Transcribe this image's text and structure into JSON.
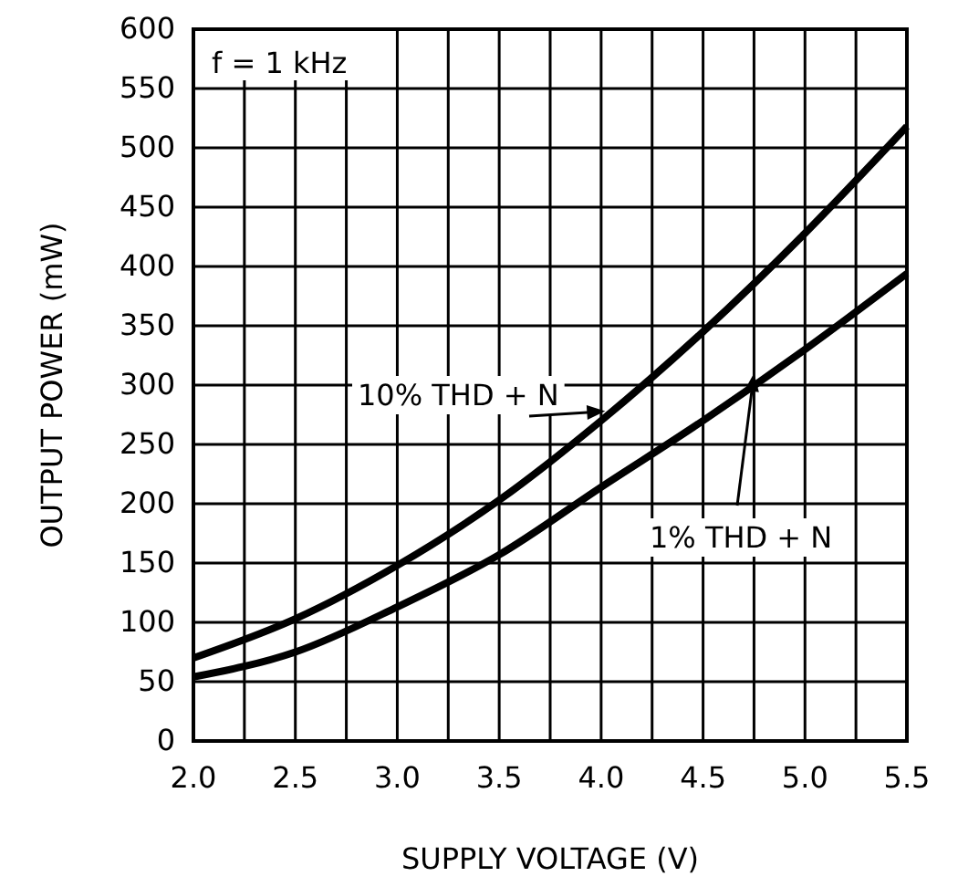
{
  "chart_data": {
    "type": "line",
    "xlabel": "SUPPLY VOLTAGE (V)",
    "ylabel": "OUTPUT POWER (mW)",
    "annotations": [
      "f = 1 kHz"
    ],
    "x": [
      2.0,
      2.5,
      3.0,
      3.5,
      4.0,
      4.5,
      5.0,
      5.5
    ],
    "series": [
      {
        "name": "10% THD + N",
        "color": "#000000",
        "values": [
          70,
          103,
          148,
          203,
          270,
          345,
          428,
          518
        ]
      },
      {
        "name": "1% THD + N",
        "color": "#000000",
        "values": [
          54,
          75,
          113,
          157,
          214,
          270,
          330,
          394
        ]
      }
    ],
    "xlim": [
      2.0,
      5.5
    ],
    "xticks": [
      {
        "value": 2,
        "label": "2.0"
      },
      {
        "value": 2.25,
        "label": null
      },
      {
        "value": 2.5,
        "label": "2.5"
      },
      {
        "value": 2.75,
        "label": null
      },
      {
        "value": 3,
        "label": "3.0"
      },
      {
        "value": 3.25,
        "label": null
      },
      {
        "value": 3.5,
        "label": "3.5"
      },
      {
        "value": 3.75,
        "label": null
      },
      {
        "value": 4,
        "label": "4.0"
      },
      {
        "value": 4.25,
        "label": null
      },
      {
        "value": 4.5,
        "label": "4.5"
      },
      {
        "value": 4.75,
        "label": null
      },
      {
        "value": 5,
        "label": "5.0"
      },
      {
        "value": 5.25,
        "label": null
      },
      {
        "value": 5.5,
        "label": "5.5"
      }
    ],
    "ylim": [
      0,
      600
    ],
    "yticks": [
      0,
      50,
      100,
      150,
      200,
      250,
      300,
      350,
      400,
      450,
      500,
      550,
      600
    ],
    "grid": true,
    "marker": "none",
    "line_style": "solid"
  }
}
